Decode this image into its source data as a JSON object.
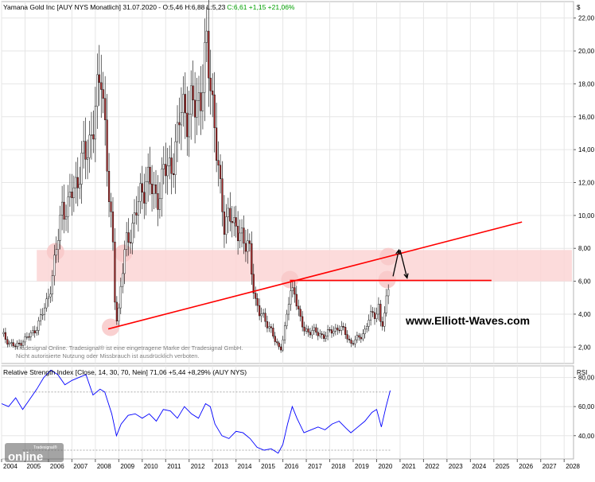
{
  "header": {
    "title": "Yamana Gold Inc [AUY NYS  Monatlich] 31.07.2020 - O:5,46 H:6,88 L:5,23",
    "change_text": "C:6,61 +1,15 +21,06%"
  },
  "currency_symbol": "$",
  "disclaimer": {
    "line1": "Tradesignal Online. Tradesignal® ist eine eingetragene Marke der Tradesignal GmbH.",
    "line2": "Nicht autorisierte Nutzung oder Missbrauch ist ausdrücklich verboten."
  },
  "watermark": "www.Elliott-Waves.com",
  "logo": {
    "small": "Tradesignal®",
    "main": "online"
  },
  "rsi_panel": {
    "title": "Relative Strength Index [Close, 14, 30, 70, Nein] 71,06 +5,44 +8,29% (AUY NYS)",
    "axis_label": "RSI"
  },
  "colors": {
    "candle_up": "#ffffff",
    "candle_down": "#a52a2a",
    "trendline": "#ff0000",
    "zone": "#fbd5d5",
    "highlight": "#f8c8c8",
    "rsi_line": "#0000ff",
    "positive_change": "#00a000",
    "grid": "#e6e6e6"
  },
  "chart_data": [
    {
      "type": "candlestick",
      "title": "Yamana Gold Inc [AUY NYS  Monatlich]",
      "x_ticks": [
        "2004",
        "2005",
        "2006",
        "2007",
        "2008",
        "2009",
        "2010",
        "2011",
        "2012",
        "2013",
        "2014",
        "2015",
        "2016",
        "2017",
        "2018",
        "2019",
        "2020",
        "2021",
        "2022",
        "2023",
        "2024",
        "2025",
        "2026",
        "2027",
        "2028"
      ],
      "xlim": [
        2004.0,
        2028.4
      ],
      "ylim": [
        1.0,
        23.0
      ],
      "y_ticks": [
        "2,00",
        "4,00",
        "6,00",
        "8,00",
        "10,00",
        "12,00",
        "14,00",
        "16,00",
        "18,00",
        "20,00",
        "22,00"
      ],
      "y_tick_values": [
        2,
        4,
        6,
        8,
        10,
        12,
        14,
        16,
        18,
        20,
        22
      ],
      "grid": true,
      "price_path": [
        [
          2004.0,
          2.8
        ],
        [
          2004.3,
          2.3
        ],
        [
          2004.6,
          2.0
        ],
        [
          2004.9,
          2.4
        ],
        [
          2005.3,
          2.8
        ],
        [
          2005.6,
          3.5
        ],
        [
          2005.9,
          4.6
        ],
        [
          2006.2,
          6.5
        ],
        [
          2006.4,
          8.5
        ],
        [
          2006.6,
          11.0
        ],
        [
          2006.8,
          10.0
        ],
        [
          2007.0,
          11.5
        ],
        [
          2007.3,
          12.5
        ],
        [
          2007.6,
          13.8
        ],
        [
          2007.9,
          15.5
        ],
        [
          2008.1,
          17.0
        ],
        [
          2008.25,
          19.0
        ],
        [
          2008.4,
          16.0
        ],
        [
          2008.6,
          10.5
        ],
        [
          2008.75,
          8.0
        ],
        [
          2008.85,
          4.5
        ],
        [
          2008.95,
          3.4
        ],
        [
          2009.1,
          6.0
        ],
        [
          2009.35,
          8.5
        ],
        [
          2009.6,
          9.5
        ],
        [
          2009.9,
          11.0
        ],
        [
          2010.2,
          12.5
        ],
        [
          2010.4,
          11.5
        ],
        [
          2010.6,
          11.0
        ],
        [
          2010.9,
          12.5
        ],
        [
          2011.2,
          13.0
        ],
        [
          2011.5,
          14.5
        ],
        [
          2011.7,
          17.0
        ],
        [
          2011.9,
          16.2
        ],
        [
          2012.2,
          16.5
        ],
        [
          2012.5,
          17.5
        ],
        [
          2012.75,
          19.8
        ],
        [
          2012.9,
          18.5
        ],
        [
          2013.1,
          15.5
        ],
        [
          2013.3,
          11.5
        ],
        [
          2013.5,
          9.5
        ],
        [
          2013.7,
          10.5
        ],
        [
          2013.9,
          9.0
        ],
        [
          2014.2,
          9.3
        ],
        [
          2014.4,
          8.0
        ],
        [
          2014.6,
          7.8
        ],
        [
          2014.8,
          5.0
        ],
        [
          2015.0,
          4.0
        ],
        [
          2015.3,
          3.6
        ],
        [
          2015.5,
          3.0
        ],
        [
          2015.7,
          2.2
        ],
        [
          2015.9,
          1.9
        ],
        [
          2016.1,
          3.2
        ],
        [
          2016.3,
          5.2
        ],
        [
          2016.5,
          5.6
        ],
        [
          2016.7,
          3.8
        ],
        [
          2016.9,
          3.0
        ],
        [
          2017.2,
          3.0
        ],
        [
          2017.5,
          2.8
        ],
        [
          2017.8,
          2.7
        ],
        [
          2018.1,
          3.0
        ],
        [
          2018.4,
          3.2
        ],
        [
          2018.7,
          2.8
        ],
        [
          2018.9,
          2.2
        ],
        [
          2019.2,
          2.5
        ],
        [
          2019.5,
          3.0
        ],
        [
          2019.7,
          3.8
        ],
        [
          2019.9,
          4.0
        ],
        [
          2020.1,
          4.5
        ],
        [
          2020.2,
          3.0
        ],
        [
          2020.35,
          4.0
        ],
        [
          2020.5,
          5.8
        ],
        [
          2020.58,
          6.61
        ]
      ],
      "zone": {
        "y_from": 6.0,
        "y_to": 7.9
      },
      "trendlines": [
        {
          "x1": 2008.55,
          "y1": 3.1,
          "x2": 2026.2,
          "y2": 9.6
        },
        {
          "x1": 2016.3,
          "y1": 6.05,
          "x2": 2024.9,
          "y2": 6.05
        }
      ],
      "highlights": [
        {
          "x": 2006.3,
          "y": 7.8
        },
        {
          "x": 2009.2,
          "y": 7.7
        },
        {
          "x": 2008.65,
          "y": 3.2
        },
        {
          "x": 2016.3,
          "y": 6.1
        },
        {
          "x": 2020.5,
          "y": 7.5
        },
        {
          "x": 2020.45,
          "y": 6.1
        }
      ],
      "arrows": [
        {
          "from": [
            2020.7,
            6.3
          ],
          "to": [
            2020.95,
            7.9
          ]
        },
        {
          "from": [
            2021.0,
            7.9
          ],
          "to": [
            2021.3,
            6.2
          ]
        }
      ]
    },
    {
      "type": "line",
      "title": "Relative Strength Index [Close, 14, 30, 70, Nein]",
      "ylabel": "RSI",
      "ylim": [
        24,
        88
      ],
      "y_ticks": [
        "40,00",
        "60,00",
        "80,00"
      ],
      "y_tick_values": [
        40,
        60,
        80
      ],
      "reference_lines": [
        30,
        70
      ],
      "series": [
        {
          "points": [
            [
              2004.0,
              62
            ],
            [
              2004.3,
              60
            ],
            [
              2004.6,
              66
            ],
            [
              2004.9,
              58
            ],
            [
              2005.2,
              65
            ],
            [
              2005.5,
              72
            ],
            [
              2005.8,
              80
            ],
            [
              2006.1,
              85
            ],
            [
              2006.4,
              82
            ],
            [
              2006.7,
              75
            ],
            [
              2007.0,
              78
            ],
            [
              2007.3,
              80
            ],
            [
              2007.6,
              82
            ],
            [
              2007.9,
              68
            ],
            [
              2008.2,
              72
            ],
            [
              2008.4,
              70
            ],
            [
              2008.7,
              55
            ],
            [
              2008.9,
              40
            ],
            [
              2009.1,
              48
            ],
            [
              2009.4,
              54
            ],
            [
              2009.7,
              55
            ],
            [
              2010.0,
              52
            ],
            [
              2010.3,
              55
            ],
            [
              2010.6,
              50
            ],
            [
              2010.9,
              58
            ],
            [
              2011.2,
              57
            ],
            [
              2011.5,
              52
            ],
            [
              2011.8,
              60
            ],
            [
              2012.1,
              55
            ],
            [
              2012.4,
              52
            ],
            [
              2012.7,
              62
            ],
            [
              2012.9,
              60
            ],
            [
              2013.1,
              48
            ],
            [
              2013.4,
              40
            ],
            [
              2013.7,
              38
            ],
            [
              2014.0,
              43
            ],
            [
              2014.3,
              42
            ],
            [
              2014.6,
              38
            ],
            [
              2014.9,
              32
            ],
            [
              2015.2,
              30
            ],
            [
              2015.5,
              31
            ],
            [
              2015.8,
              28
            ],
            [
              2016.0,
              34
            ],
            [
              2016.2,
              48
            ],
            [
              2016.4,
              60
            ],
            [
              2016.6,
              52
            ],
            [
              2016.9,
              42
            ],
            [
              2017.2,
              44
            ],
            [
              2017.5,
              46
            ],
            [
              2017.8,
              44
            ],
            [
              2018.1,
              48
            ],
            [
              2018.4,
              50
            ],
            [
              2018.7,
              45
            ],
            [
              2018.9,
              42
            ],
            [
              2019.2,
              46
            ],
            [
              2019.5,
              50
            ],
            [
              2019.8,
              56
            ],
            [
              2020.0,
              58
            ],
            [
              2020.2,
              46
            ],
            [
              2020.4,
              60
            ],
            [
              2020.58,
              71.06
            ]
          ]
        }
      ]
    }
  ]
}
